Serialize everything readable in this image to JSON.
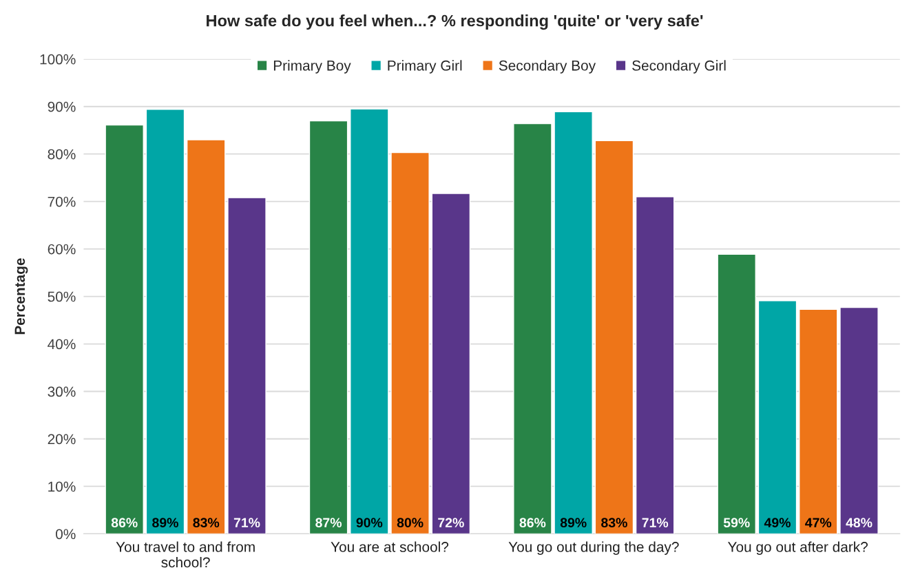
{
  "chart_data": {
    "type": "bar",
    "title": "How safe do you feel when...? % responding 'quite' or 'very safe'",
    "ylabel": "Percentage",
    "categories": [
      "You travel to and from\nschool?",
      "You are at school?",
      "You go out during the day?",
      "You go out after dark?"
    ],
    "series": [
      {
        "name": "Primary Boy",
        "color": "#288447",
        "values": [
          86.1,
          87.0,
          86.4,
          58.9
        ],
        "value_labels": [
          "86%",
          "87%",
          "86%",
          "59%"
        ]
      },
      {
        "name": "Primary Girl",
        "color": "#00a6a6",
        "values": [
          89.4,
          89.5,
          88.9,
          49.1
        ],
        "value_labels": [
          "89%",
          "90%",
          "89%",
          "49%"
        ]
      },
      {
        "name": "Secondary Boy",
        "color": "#ee7518",
        "values": [
          83.0,
          80.3,
          82.8,
          47.3
        ],
        "value_labels": [
          "83%",
          "80%",
          "83%",
          "47%"
        ]
      },
      {
        "name": "Secondary Girl",
        "color": "#59368a",
        "values": [
          70.8,
          71.7,
          71.0,
          47.7
        ],
        "value_labels": [
          "71%",
          "72%",
          "71%",
          "48%"
        ]
      }
    ],
    "ylim": [
      0,
      100
    ],
    "yticks": [
      {
        "value": 0,
        "label": "0%"
      },
      {
        "value": 10,
        "label": "10%"
      },
      {
        "value": 20,
        "label": "20%"
      },
      {
        "value": 30,
        "label": "30%"
      },
      {
        "value": 40,
        "label": "40%"
      },
      {
        "value": 50,
        "label": "50%"
      },
      {
        "value": 60,
        "label": "60%"
      },
      {
        "value": 70,
        "label": "70%"
      },
      {
        "value": 80,
        "label": "80%"
      },
      {
        "value": 90,
        "label": "90%"
      },
      {
        "value": 100,
        "label": "100%"
      }
    ],
    "grid": "y",
    "legend": "top"
  }
}
